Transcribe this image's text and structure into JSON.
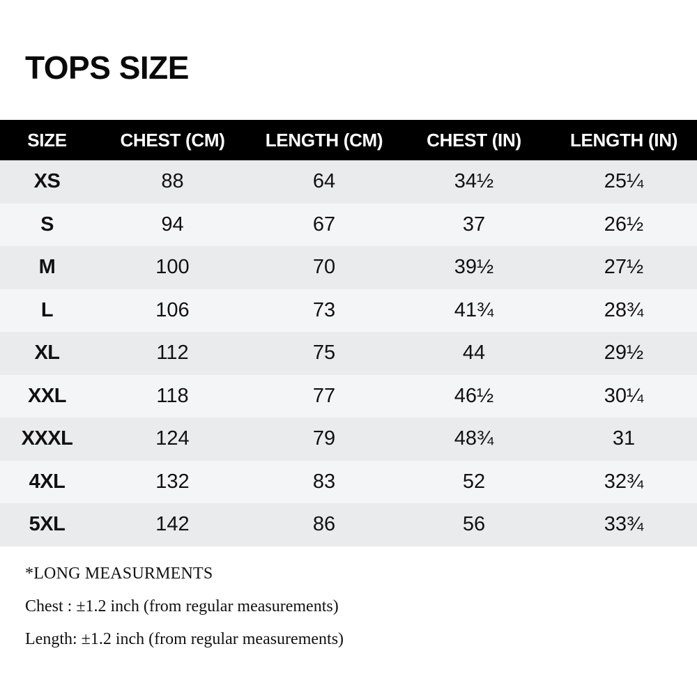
{
  "page": {
    "title": "TOPS SIZE"
  },
  "table": {
    "headers": [
      "SIZE",
      "CHEST (CM)",
      "LENGTH (CM)",
      "CHEST (IN)",
      "LENGTH (IN)"
    ],
    "rows": [
      {
        "size": "XS",
        "chest_cm": "88",
        "length_cm": "64",
        "chest_in": "34½",
        "length_in": "25¼"
      },
      {
        "size": "S",
        "chest_cm": "94",
        "length_cm": "67",
        "chest_in": "37",
        "length_in": "26½"
      },
      {
        "size": "M",
        "chest_cm": "100",
        "length_cm": "70",
        "chest_in": "39½",
        "length_in": "27½"
      },
      {
        "size": "L",
        "chest_cm": "106",
        "length_cm": "73",
        "chest_in": "41¾",
        "length_in": "28¾"
      },
      {
        "size": "XL",
        "chest_cm": "112",
        "length_cm": "75",
        "chest_in": "44",
        "length_in": "29½"
      },
      {
        "size": "XXL",
        "chest_cm": "118",
        "length_cm": "77",
        "chest_in": "46½",
        "length_in": "30¼"
      },
      {
        "size": "XXXL",
        "chest_cm": "124",
        "length_cm": "79",
        "chest_in": "48¾",
        "length_in": "31"
      },
      {
        "size": "4XL",
        "chest_cm": "132",
        "length_cm": "83",
        "chest_in": "52",
        "length_in": "32¾"
      },
      {
        "size": "5XL",
        "chest_cm": "142",
        "length_cm": "86",
        "chest_in": "56",
        "length_in": "33¾"
      }
    ]
  },
  "notes": {
    "long_title": "*LONG MEASURMENTS",
    "chest_note": "Chest : ±1.2 inch (from regular measurements)",
    "length_note": "Length: ±1.2 inch (from regular measurements)"
  },
  "colors": {
    "header_bg": "#000000",
    "header_text": "#ffffff",
    "row_stripe_dark": "#e9ebed",
    "row_stripe_light": "#f4f5f7"
  }
}
